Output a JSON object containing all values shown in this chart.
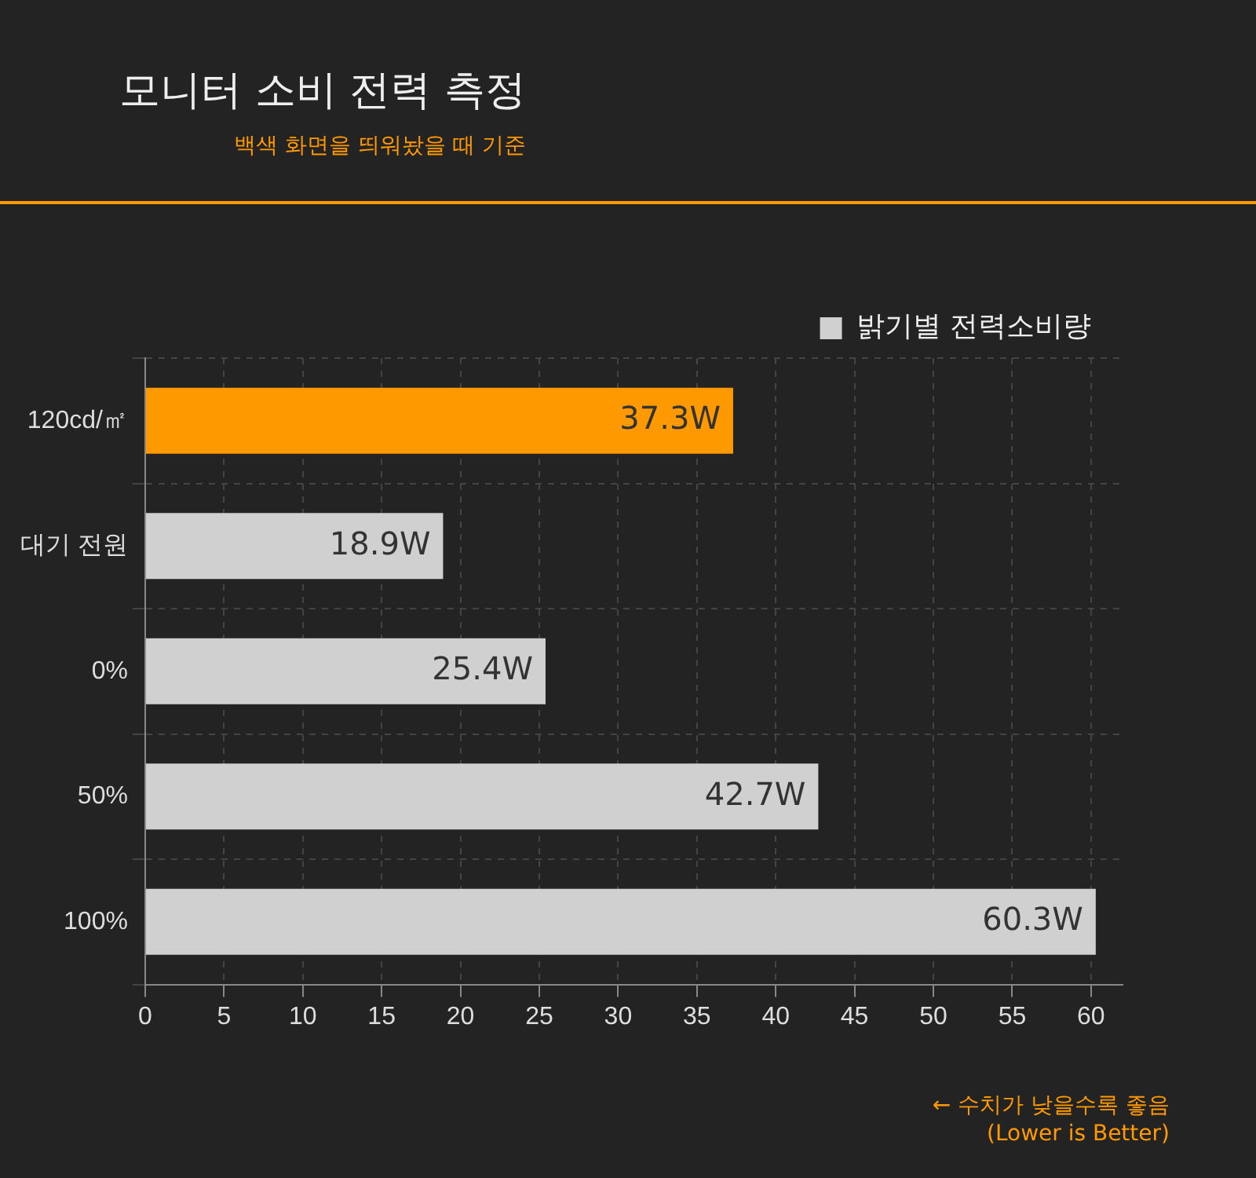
{
  "chart_data": {
    "type": "bar",
    "orientation": "horizontal",
    "title": "모니터 소비 전력 측정",
    "subtitle": "백색 화면을 띄워놨을 때 기준",
    "categories": [
      "120cd/㎡",
      "대기 전원",
      "0%",
      "50%",
      "100%"
    ],
    "series": [
      {
        "name": "밝기별 전력소비량",
        "color": "#d0d0d0",
        "colors": [
          "#ff9900",
          "#d0d0d0",
          "#d0d0d0",
          "#d0d0d0",
          "#d0d0d0"
        ],
        "values": [
          37.3,
          18.9,
          25.4,
          42.7,
          60.3
        ],
        "value_labels": [
          "37.3W",
          "18.9W",
          "25.4W",
          "42.7W",
          "60.3W"
        ]
      }
    ],
    "xlim": [
      0,
      62
    ],
    "xticks": [
      0,
      5,
      10,
      15,
      20,
      25,
      30,
      35,
      40,
      45,
      50,
      55,
      60
    ],
    "grid": true,
    "legend": "top right",
    "annotations": [
      "← 수치가 낮을수록 좋음",
      "(Lower is Better)"
    ]
  }
}
